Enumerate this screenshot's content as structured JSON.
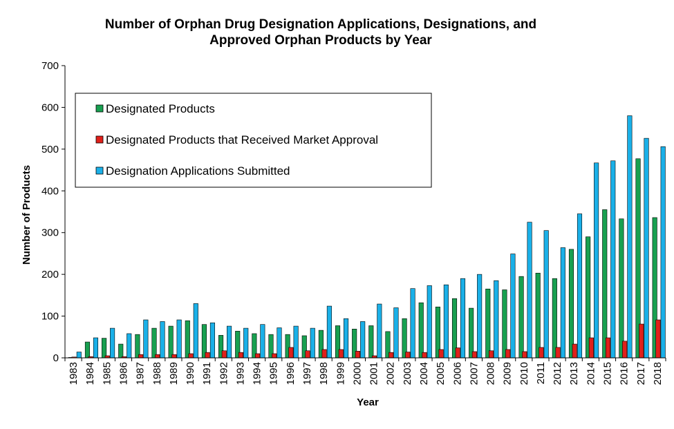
{
  "chart_data": {
    "type": "bar",
    "title_lines": [
      "Number of Orphan Drug Designation Applications, Designations, and",
      "Approved Orphan Products by Year"
    ],
    "xlabel": "Year",
    "ylabel": "Number of Products",
    "ylim": [
      0,
      700
    ],
    "yticks": [
      0,
      100,
      200,
      300,
      400,
      500,
      600,
      700
    ],
    "grid": false,
    "legend_position": "top-left inside plot",
    "categories": [
      "1983",
      "1984",
      "1985",
      "1986",
      "1987",
      "1988",
      "1989",
      "1990",
      "1991",
      "1992",
      "1993",
      "1994",
      "1995",
      "1996",
      "1997",
      "1998",
      "1999",
      "2000",
      "2001",
      "2002",
      "2003",
      "2004",
      "2005",
      "2006",
      "2007",
      "2008",
      "2009",
      "2010",
      "2011",
      "2012",
      "2013",
      "2014",
      "2015",
      "2016",
      "2017",
      "2018"
    ],
    "series": [
      {
        "name": "Designated Products",
        "color": "#18a050",
        "values": [
          1,
          38,
          47,
          33,
          56,
          71,
          76,
          89,
          80,
          54,
          64,
          58,
          56,
          56,
          53,
          66,
          77,
          69,
          77,
          63,
          94,
          132,
          122,
          142,
          119,
          165,
          163,
          195,
          203,
          190,
          260,
          290,
          355,
          333,
          477,
          336
        ]
      },
      {
        "name": "Designated Products that Received Market Approval",
        "color": "#e0201a",
        "values": [
          2,
          3,
          5,
          3,
          8,
          8,
          8,
          10,
          13,
          17,
          13,
          10,
          10,
          25,
          17,
          20,
          20,
          16,
          5,
          13,
          14,
          13,
          20,
          24,
          15,
          17,
          20,
          15,
          25,
          25,
          33,
          48,
          48,
          40,
          81,
          91
        ]
      },
      {
        "name": "Designation Applications Submitted",
        "color": "#1ab0e8",
        "values": [
          14,
          48,
          71,
          58,
          91,
          87,
          91,
          130,
          84,
          76,
          71,
          80,
          72,
          76,
          71,
          124,
          94,
          87,
          129,
          120,
          166,
          173,
          175,
          190,
          200,
          185,
          249,
          325,
          305,
          264,
          345,
          467,
          472,
          580,
          526,
          506
        ]
      }
    ]
  }
}
